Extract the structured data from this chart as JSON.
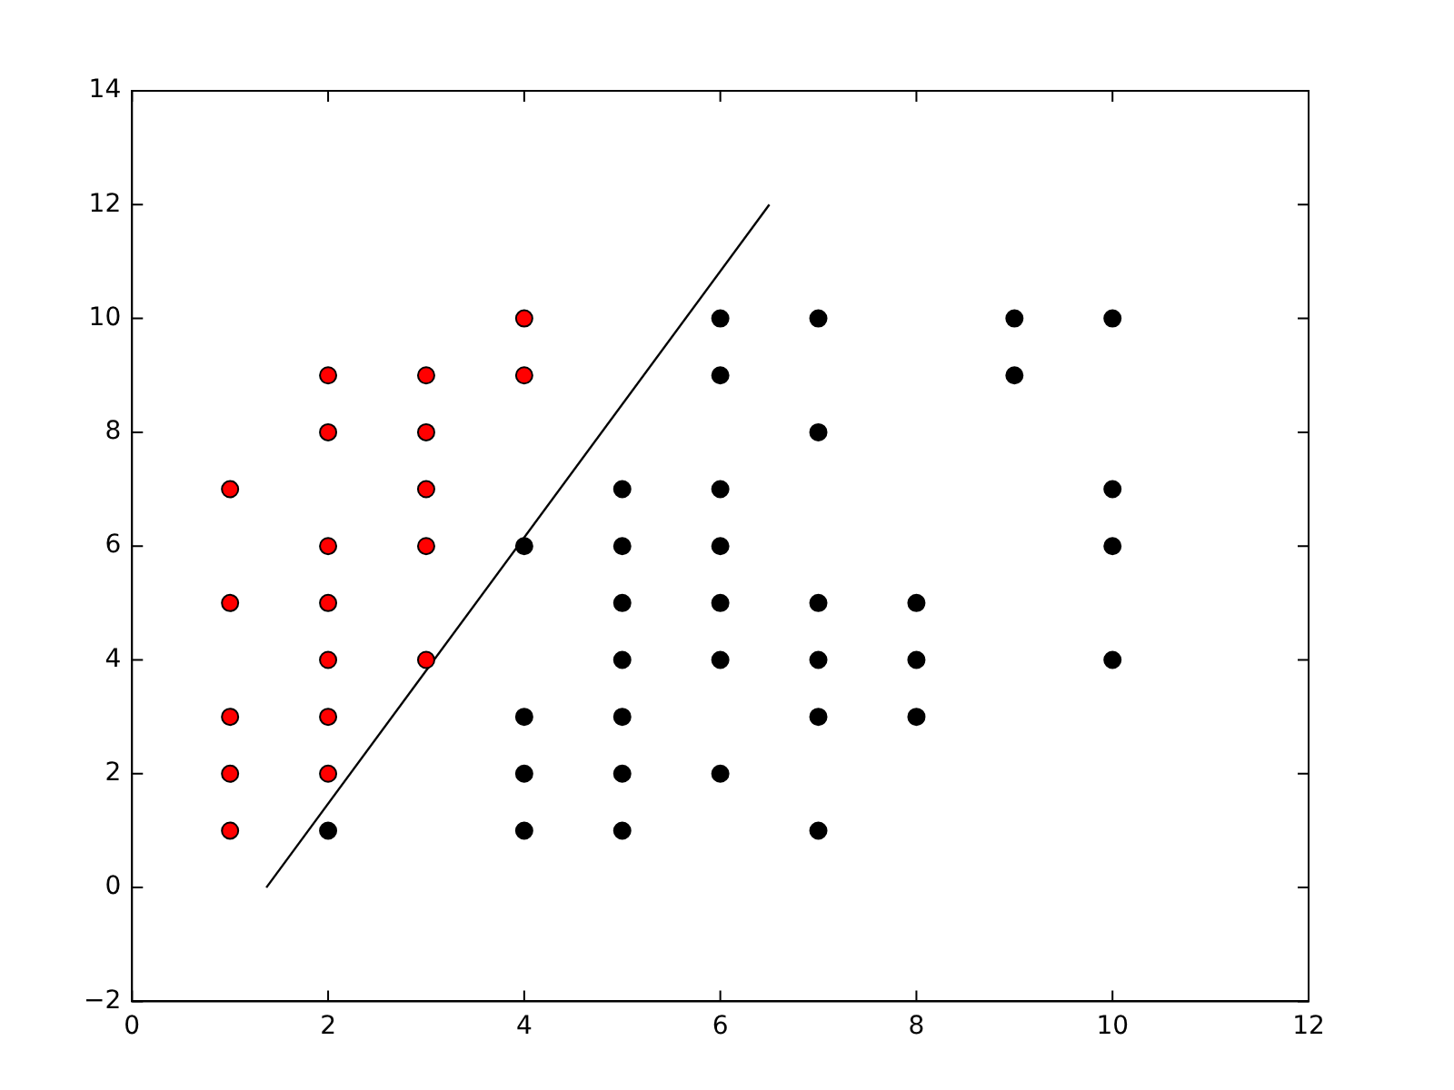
{
  "chart_data": {
    "type": "scatter",
    "xlim": [
      0,
      12
    ],
    "ylim": [
      -2,
      14
    ],
    "xticks": [
      0,
      2,
      4,
      6,
      8,
      10,
      12
    ],
    "yticks": [
      -2,
      0,
      2,
      4,
      6,
      8,
      10,
      12,
      14
    ],
    "grid": false,
    "legend": false,
    "marker": "circle",
    "series": [
      {
        "color": "#ff0000",
        "x": [
          1,
          1,
          1,
          1,
          1,
          2,
          2,
          2,
          2,
          2,
          2,
          2,
          3,
          3,
          3,
          3,
          3,
          4,
          4
        ],
        "values": [
          1,
          2,
          3,
          5,
          7,
          2,
          3,
          4,
          5,
          6,
          8,
          9,
          4,
          6,
          7,
          8,
          9,
          9,
          10
        ]
      },
      {
        "color": "#000000",
        "x": [
          2,
          4,
          4,
          4,
          4,
          5,
          5,
          5,
          5,
          5,
          5,
          5,
          6,
          6,
          6,
          6,
          6,
          6,
          6,
          7,
          7,
          7,
          7,
          7,
          7,
          8,
          8,
          8,
          9,
          9,
          10,
          10,
          10,
          10
        ],
        "values": [
          1,
          1,
          2,
          3,
          6,
          1,
          2,
          3,
          4,
          5,
          6,
          7,
          2,
          4,
          5,
          6,
          7,
          9,
          10,
          1,
          3,
          4,
          5,
          8,
          10,
          3,
          4,
          5,
          9,
          10,
          4,
          6,
          7,
          10
        ]
      },
      {
        "type": "line",
        "color": "#000000",
        "marker": "none",
        "line_style": "solid",
        "x": [
          1.37,
          6.5
        ],
        "values": [
          0,
          12
        ]
      }
    ]
  }
}
